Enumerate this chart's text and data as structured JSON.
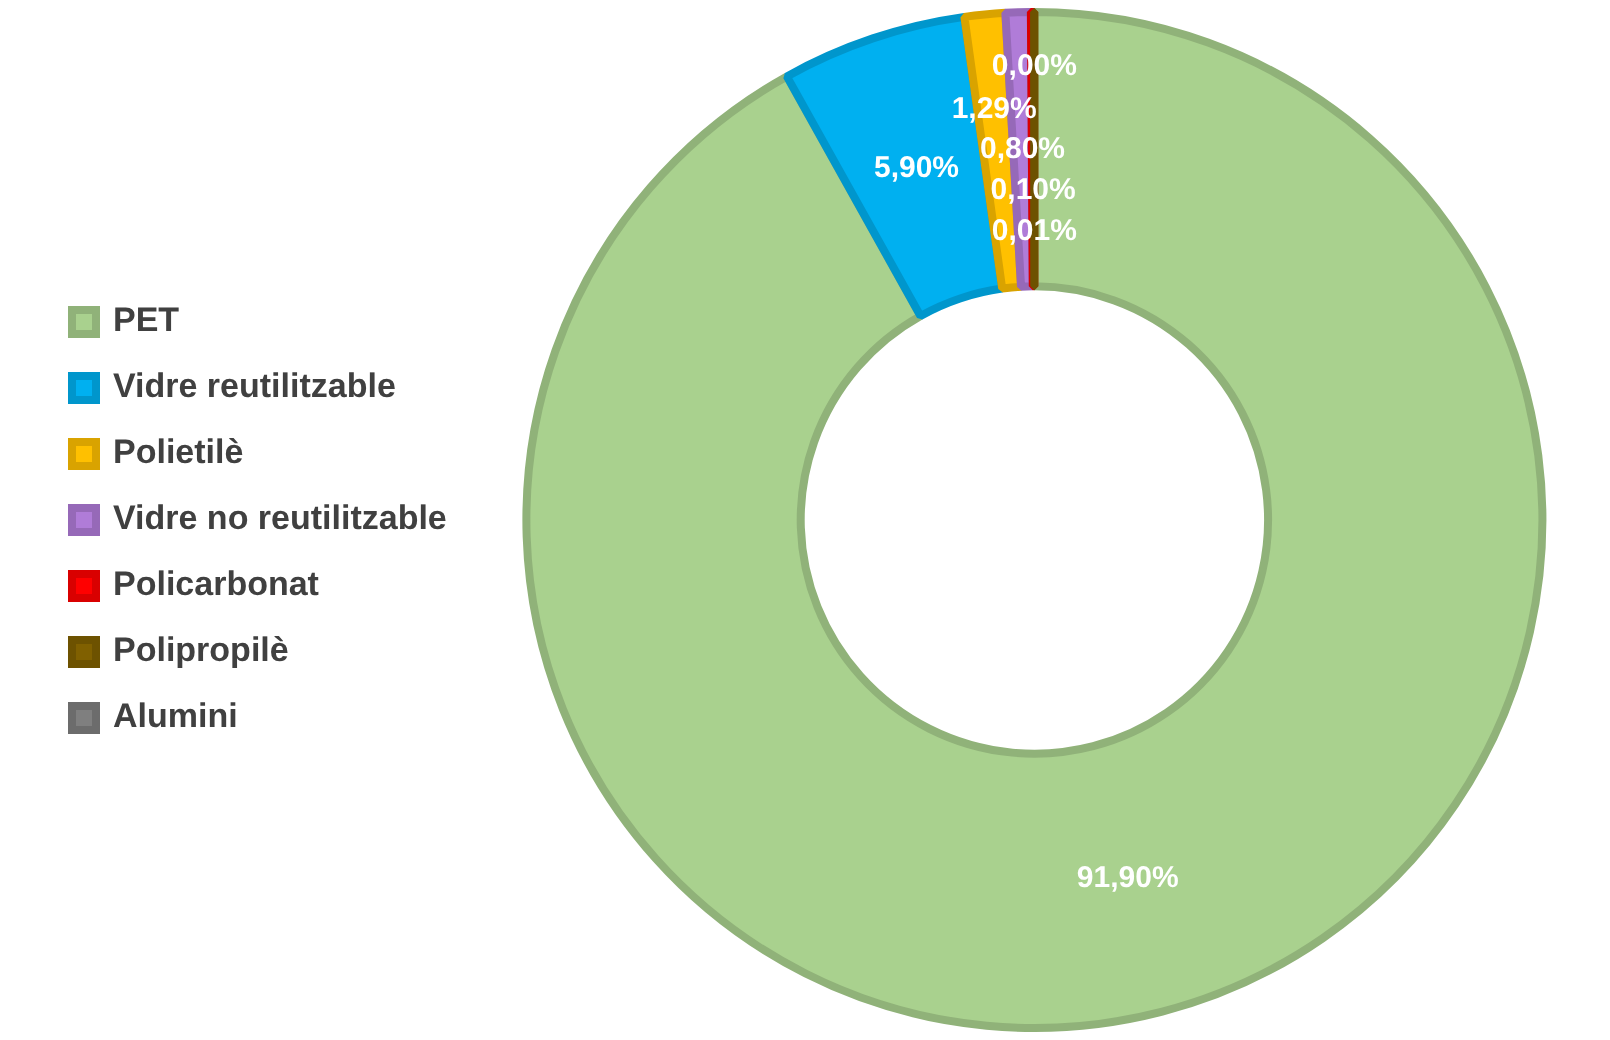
{
  "chart_data": {
    "type": "donut",
    "categories": [
      "PET",
      "Vidre reutilitzable",
      "Polietilè",
      "Vidre no reutilitzable",
      "Policarbonat",
      "Polipropilè",
      "Alumini"
    ],
    "values": [
      91.9,
      5.9,
      1.29,
      0.8,
      0.1,
      0.01,
      0.0
    ],
    "colors": [
      "#a9d18e",
      "#00b0f0",
      "#ffc000",
      "#b07cd8",
      "#ff0000",
      "#806000",
      "#7f7f7f"
    ],
    "value_labels": [
      "91,90%",
      "5,90%",
      "1,29%",
      "0,80%",
      "0,10%",
      "0,01%",
      "0,00%"
    ],
    "legend": "left"
  }
}
